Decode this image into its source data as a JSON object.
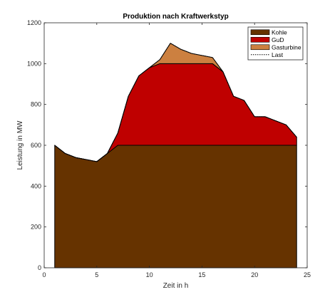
{
  "chart_data": {
    "type": "area",
    "stacked": true,
    "title": "Produktion nach Kraftwerkstyp",
    "xlabel": "Zeit in h",
    "ylabel": "Leistung in MW",
    "xlim": [
      0,
      25
    ],
    "ylim": [
      0,
      1200
    ],
    "xticks": [
      "0",
      "5",
      "10",
      "15",
      "20",
      "25"
    ],
    "yticks": [
      "0",
      "200",
      "400",
      "600",
      "800",
      "1000",
      "1200"
    ],
    "grid": false,
    "legend_position": "top-right",
    "x": [
      1,
      2,
      3,
      4,
      5,
      6,
      7,
      8,
      9,
      10,
      11,
      12,
      13,
      14,
      15,
      16,
      17,
      18,
      19,
      20,
      21,
      22,
      23,
      24
    ],
    "series": [
      {
        "name": "Kohle",
        "kind": "area",
        "color": "#663300",
        "values": [
          600,
          560,
          540,
          530,
          520,
          560,
          600,
          600,
          600,
          600,
          600,
          600,
          600,
          600,
          600,
          600,
          600,
          600,
          600,
          600,
          600,
          600,
          600,
          600
        ]
      },
      {
        "name": "GuD",
        "kind": "area",
        "color": "#bf0000",
        "values": [
          0,
          0,
          0,
          0,
          0,
          0,
          60,
          240,
          340,
          380,
          400,
          400,
          400,
          400,
          400,
          400,
          360,
          240,
          220,
          140,
          140,
          120,
          100,
          40
        ]
      },
      {
        "name": "Gasturbine",
        "kind": "area",
        "color": "#cc8040",
        "values": [
          0,
          0,
          0,
          0,
          0,
          0,
          0,
          0,
          0,
          0,
          20,
          100,
          70,
          50,
          40,
          30,
          0,
          0,
          0,
          0,
          0,
          0,
          0,
          0
        ]
      },
      {
        "name": "Last",
        "kind": "line",
        "style": "dotted",
        "color": "#000000",
        "values": [
          600,
          560,
          540,
          530,
          520,
          560,
          660,
          840,
          940,
          980,
          1020,
          1100,
          1070,
          1050,
          1040,
          1030,
          960,
          840,
          820,
          740,
          740,
          720,
          700,
          640
        ]
      }
    ]
  }
}
